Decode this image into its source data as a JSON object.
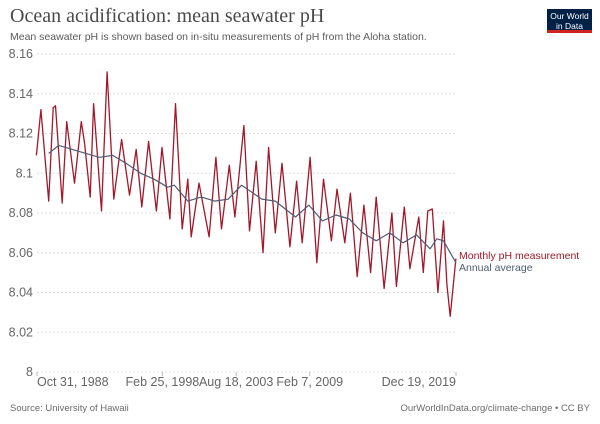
{
  "header": {
    "title": "Ocean acidification: mean seawater pH",
    "subtitle": "Mean seawater pH is shown based on in-situ measurements of pH from the Aloha station.",
    "logo_text": "Our World in Data"
  },
  "footer": {
    "source": "Source: University of Hawaii",
    "license": "OurWorldInData.org/climate-change • CC BY"
  },
  "chart_data": {
    "type": "line",
    "title": "Ocean acidification: mean seawater pH",
    "ylim": [
      8,
      8.16
    ],
    "yticks": [
      "8",
      "8.02",
      "8.04",
      "8.06",
      "8.08",
      "8.1",
      "8.12",
      "8.14",
      "8.16"
    ],
    "xlim": [
      "1988-10-31",
      "2019-12-19"
    ],
    "xticks": [
      {
        "date": "1988-10-31",
        "label": "Oct 31, 1988"
      },
      {
        "date": "1998-02-25",
        "label": "Feb 25, 1998"
      },
      {
        "date": "2003-08-18",
        "label": "Aug 18, 2003"
      },
      {
        "date": "2009-02-07",
        "label": "Feb 7, 2009"
      },
      {
        "date": "2019-12-19",
        "label": "Dec 19, 2019"
      }
    ],
    "grid": "horizontal dotted",
    "legend": "right, at line ends",
    "series": [
      {
        "name": "Monthly pH measurement",
        "color": "#a2182a",
        "points": [
          [
            "1988-10",
            8.109
          ],
          [
            "1989-02",
            8.132
          ],
          [
            "1989-09",
            8.086
          ],
          [
            "1990-01",
            8.133
          ],
          [
            "1990-03",
            8.134
          ],
          [
            "1990-09",
            8.085
          ],
          [
            "1991-01",
            8.126
          ],
          [
            "1991-08",
            8.095
          ],
          [
            "1992-02",
            8.126
          ],
          [
            "1992-05",
            8.115
          ],
          [
            "1992-10",
            8.088
          ],
          [
            "1993-01",
            8.135
          ],
          [
            "1993-08",
            8.081
          ],
          [
            "1994-01",
            8.151
          ],
          [
            "1994-07",
            8.087
          ],
          [
            "1995-02",
            8.117
          ],
          [
            "1995-09",
            8.089
          ],
          [
            "1996-03",
            8.112
          ],
          [
            "1996-08",
            8.083
          ],
          [
            "1997-02",
            8.116
          ],
          [
            "1997-09",
            8.081
          ],
          [
            "1998-02",
            8.113
          ],
          [
            "1998-09",
            8.077
          ],
          [
            "1999-02",
            8.135
          ],
          [
            "1999-08",
            8.072
          ],
          [
            "2000-01",
            8.097
          ],
          [
            "2000-04",
            8.068
          ],
          [
            "2000-11",
            8.095
          ],
          [
            "2001-08",
            8.068
          ],
          [
            "2002-02",
            8.108
          ],
          [
            "2002-07",
            8.072
          ],
          [
            "2003-02",
            8.104
          ],
          [
            "2003-07",
            8.078
          ],
          [
            "2004-03",
            8.124
          ],
          [
            "2004-08",
            8.071
          ],
          [
            "2005-02",
            8.106
          ],
          [
            "2005-08",
            8.06
          ],
          [
            "2006-01",
            8.113
          ],
          [
            "2006-07",
            8.07
          ],
          [
            "2007-01",
            8.105
          ],
          [
            "2007-08",
            8.063
          ],
          [
            "2008-02",
            8.096
          ],
          [
            "2008-07",
            8.065
          ],
          [
            "2009-02",
            8.108
          ],
          [
            "2009-08",
            8.055
          ],
          [
            "2010-02",
            8.097
          ],
          [
            "2010-09",
            8.066
          ],
          [
            "2011-02",
            8.092
          ],
          [
            "2011-09",
            8.065
          ],
          [
            "2012-02",
            8.09
          ],
          [
            "2012-08",
            8.048
          ],
          [
            "2013-02",
            8.084
          ],
          [
            "2013-08",
            8.05
          ],
          [
            "2014-01",
            8.088
          ],
          [
            "2014-08",
            8.042
          ],
          [
            "2015-03",
            8.08
          ],
          [
            "2015-07",
            8.043
          ],
          [
            "2016-02",
            8.083
          ],
          [
            "2016-07",
            8.052
          ],
          [
            "2017-03",
            8.078
          ],
          [
            "2017-07",
            8.05
          ],
          [
            "2017-11",
            8.081
          ],
          [
            "2018-03",
            8.082
          ],
          [
            "2018-08",
            8.04
          ],
          [
            "2019-01",
            8.076
          ],
          [
            "2019-04",
            8.044
          ],
          [
            "2019-07",
            8.028
          ],
          [
            "2019-12",
            8.057
          ]
        ]
      },
      {
        "name": "Annual average",
        "color": "#4c5d73",
        "points": [
          [
            "1989-09",
            8.11
          ],
          [
            "1990-06",
            8.114
          ],
          [
            "1991-06",
            8.112
          ],
          [
            "1992-06",
            8.11
          ],
          [
            "1993-06",
            8.108
          ],
          [
            "1994-06",
            8.109
          ],
          [
            "1995-06",
            8.105
          ],
          [
            "1996-07",
            8.1
          ],
          [
            "1997-07",
            8.097
          ],
          [
            "1998-07",
            8.093
          ],
          [
            "1999-01",
            8.094
          ],
          [
            "2000-01",
            8.086
          ],
          [
            "2001-01",
            8.088
          ],
          [
            "2002-01",
            8.086
          ],
          [
            "2003-01",
            8.087
          ],
          [
            "2004-01",
            8.094
          ],
          [
            "2005-07",
            8.087
          ],
          [
            "2006-07",
            8.086
          ],
          [
            "2008-01",
            8.078
          ],
          [
            "2009-01",
            8.084
          ],
          [
            "2010-01",
            8.076
          ],
          [
            "2011-01",
            8.079
          ],
          [
            "2012-01",
            8.077
          ],
          [
            "2013-01",
            8.07
          ],
          [
            "2014-01",
            8.066
          ],
          [
            "2015-01",
            8.07
          ],
          [
            "2016-01",
            8.065
          ],
          [
            "2017-01",
            8.069
          ],
          [
            "2018-01",
            8.062
          ],
          [
            "2018-07",
            8.067
          ],
          [
            "2019-01",
            8.066
          ],
          [
            "2019-12",
            8.055
          ]
        ]
      }
    ]
  }
}
